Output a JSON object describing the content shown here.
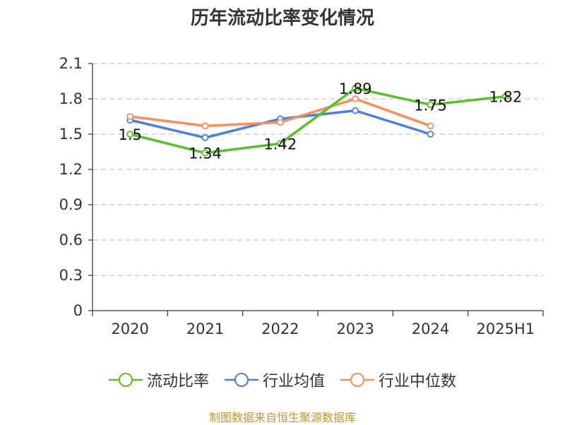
{
  "title": "历年流动比率变化情况",
  "source": "制图数据来自恒生聚源数据库",
  "chart_data": {
    "type": "line",
    "categories": [
      "2020",
      "2021",
      "2022",
      "2023",
      "2024",
      "2025H1"
    ],
    "ylim": [
      0,
      2.1
    ],
    "yticks": [
      "0",
      "0.3",
      "0.6",
      "0.9",
      "1.2",
      "1.5",
      "1.8",
      "2.1"
    ],
    "grid": true,
    "legend_position": "bottom",
    "series": [
      {
        "name": "流动比率",
        "color": "#5ac02a",
        "values": [
          1.5,
          1.34,
          1.42,
          1.89,
          1.75,
          1.82
        ],
        "labels": [
          "1.5",
          "1.34",
          "1.42",
          "1.89",
          "1.75",
          "1.82"
        ]
      },
      {
        "name": "行业均值",
        "color": "#4f7fdd",
        "values": [
          1.62,
          1.47,
          1.63,
          1.7,
          1.5,
          null
        ]
      },
      {
        "name": "行业中位数",
        "color": "#f79059",
        "values": [
          1.65,
          1.57,
          1.6,
          1.8,
          1.57,
          null
        ]
      }
    ]
  }
}
